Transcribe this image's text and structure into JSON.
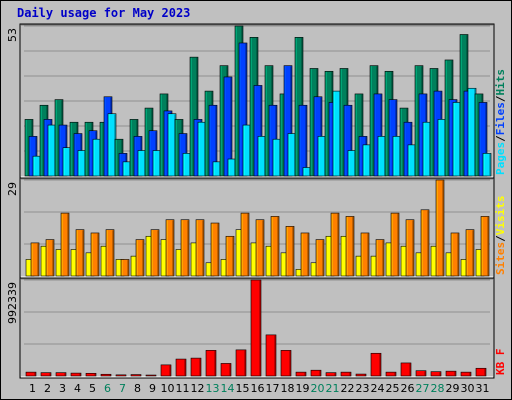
{
  "title": "Daily usage for May 2023",
  "colors": {
    "background": "#c0c0c0",
    "hits": "#00805c",
    "files": "#0040ff",
    "pages": "#00e0ff",
    "visits": "#ffff00",
    "sites": "#ff8000",
    "kbytes": "#ff0000",
    "title": "#0000c8",
    "weekend_day": "#00805c",
    "weekday_day": "#000000"
  },
  "chart_data": [
    {
      "type": "bar",
      "panel": "top",
      "ymax_label": "53",
      "ylim": [
        0,
        53
      ],
      "legend": {
        "items": [
          {
            "text": "Pages",
            "color": "#00e0ff"
          },
          {
            "text": "/",
            "color": "#000000"
          },
          {
            "text": "Files",
            "color": "#0040ff"
          },
          {
            "text": "/",
            "color": "#000000"
          },
          {
            "text": "Hits",
            "color": "#00805c"
          }
        ]
      },
      "categories": [
        "1",
        "2",
        "3",
        "4",
        "5",
        "6",
        "7",
        "8",
        "9",
        "10",
        "11",
        "12",
        "13",
        "14",
        "15",
        "16",
        "17",
        "18",
        "19",
        "20",
        "21",
        "22",
        "23",
        "24",
        "25",
        "26",
        "27",
        "28",
        "29",
        "30",
        "31"
      ],
      "series": [
        {
          "name": "Hits",
          "values": [
            20,
            25,
            27,
            19,
            19,
            19,
            13,
            20,
            24,
            29,
            20,
            42,
            30,
            39,
            53,
            49,
            39,
            29,
            49,
            38,
            37,
            38,
            29,
            39,
            37,
            24,
            39,
            38,
            41,
            50,
            29
          ]
        },
        {
          "name": "Files",
          "values": [
            14,
            20,
            18,
            15,
            16,
            28,
            8,
            14,
            16,
            23,
            15,
            20,
            25,
            35,
            47,
            32,
            25,
            39,
            25,
            28,
            26,
            25,
            14,
            29,
            27,
            19,
            29,
            30,
            27,
            30,
            26
          ]
        },
        {
          "name": "Pages",
          "values": [
            7,
            18,
            10,
            9,
            13,
            22,
            5,
            9,
            9,
            22,
            8,
            19,
            5,
            6,
            18,
            14,
            13,
            15,
            3,
            14,
            30,
            9,
            11,
            14,
            14,
            11,
            19,
            20,
            26,
            31,
            8
          ]
        }
      ]
    },
    {
      "type": "bar",
      "panel": "middle",
      "ymax_label": "29",
      "ylim": [
        0,
        29
      ],
      "legend": {
        "items": [
          {
            "text": "Sites",
            "color": "#ff8000"
          },
          {
            "text": "/",
            "color": "#000000"
          },
          {
            "text": "Visits",
            "color": "#ffff00"
          }
        ]
      },
      "categories": [
        "1",
        "2",
        "3",
        "4",
        "5",
        "6",
        "7",
        "8",
        "9",
        "10",
        "11",
        "12",
        "13",
        "14",
        "15",
        "16",
        "17",
        "18",
        "19",
        "20",
        "21",
        "22",
        "23",
        "24",
        "25",
        "26",
        "27",
        "28",
        "29",
        "30",
        "31"
      ],
      "series": [
        {
          "name": "Visits",
          "values": [
            5,
            9,
            8,
            8,
            7,
            9,
            5,
            6,
            12,
            11,
            8,
            10,
            4,
            5,
            14,
            10,
            9,
            7,
            2,
            4,
            12,
            12,
            6,
            6,
            10,
            9,
            7,
            9,
            7,
            5,
            8
          ]
        },
        {
          "name": "Sites",
          "values": [
            10,
            11,
            19,
            14,
            13,
            14,
            5,
            11,
            14,
            17,
            17,
            17,
            16,
            12,
            19,
            17,
            18,
            15,
            13,
            11,
            19,
            18,
            13,
            11,
            19,
            17,
            20,
            29,
            13,
            14,
            18
          ]
        }
      ]
    },
    {
      "type": "bar",
      "panel": "bottom",
      "ymax_label": "992339",
      "ylim": [
        0,
        992339
      ],
      "legend": {
        "items": [
          {
            "text": "KB F",
            "color": "#ff0000"
          }
        ]
      },
      "categories": [
        "1",
        "2",
        "3",
        "4",
        "5",
        "6",
        "7",
        "8",
        "9",
        "10",
        "11",
        "12",
        "13",
        "14",
        "15",
        "16",
        "17",
        "18",
        "19",
        "20",
        "21",
        "22",
        "23",
        "24",
        "25",
        "26",
        "27",
        "28",
        "29",
        "30",
        "31"
      ],
      "series": [
        {
          "name": "KB F",
          "values": [
            40000,
            35000,
            35000,
            30000,
            28000,
            18000,
            12000,
            15000,
            10000,
            115000,
            175000,
            185000,
            265000,
            130000,
            270000,
            992339,
            425000,
            265000,
            40000,
            60000,
            35000,
            40000,
            20000,
            235000,
            40000,
            135000,
            55000,
            45000,
            50000,
            40000,
            80000
          ]
        }
      ]
    }
  ],
  "x_axis": {
    "days": [
      "1",
      "2",
      "3",
      "4",
      "5",
      "6",
      "7",
      "8",
      "9",
      "10",
      "11",
      "12",
      "13",
      "14",
      "15",
      "16",
      "17",
      "18",
      "19",
      "20",
      "21",
      "22",
      "23",
      "24",
      "25",
      "26",
      "27",
      "28",
      "29",
      "30",
      "31"
    ],
    "weekend_days": [
      "6",
      "7",
      "13",
      "14",
      "20",
      "21",
      "27",
      "28"
    ]
  }
}
